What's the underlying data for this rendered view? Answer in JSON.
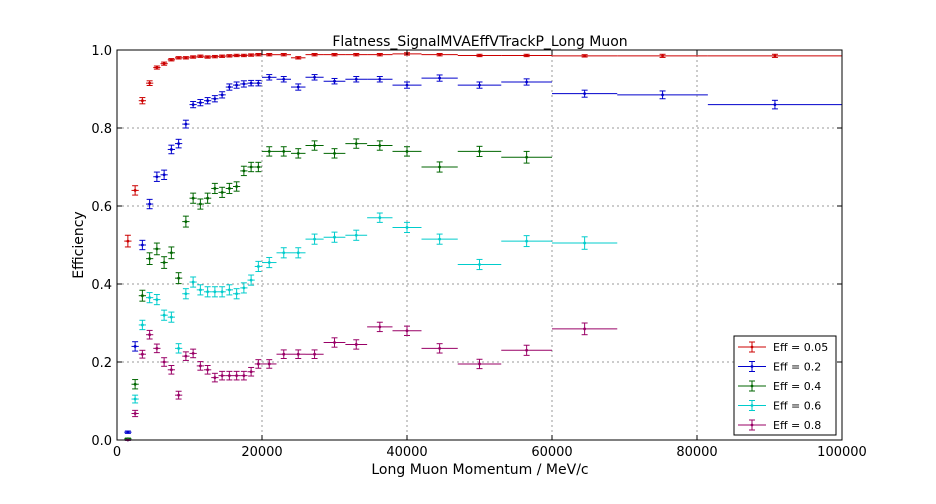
{
  "chart_data": {
    "type": "scatter",
    "title": "Flatness_SignalMVAEffVTrackP_Long Muon",
    "xlabel": "Long Muon Momentum / MeV/c",
    "ylabel": "Efficiency",
    "xlim": [
      0,
      100000
    ],
    "ylim": [
      0,
      1.0
    ],
    "x_ticks": [
      0,
      20000,
      40000,
      60000,
      80000,
      100000
    ],
    "x_tick_labels": [
      "0",
      "20000",
      "40000",
      "60000",
      "80000",
      "100000"
    ],
    "y_ticks": [
      0.0,
      0.2,
      0.4,
      0.6,
      0.8,
      1.0
    ],
    "y_tick_labels": [
      "0.0",
      "0.2",
      "0.4",
      "0.6",
      "0.8",
      "1.0"
    ],
    "grid": true,
    "legend_position": "lower-right",
    "x_bin_edges": [
      1000,
      2000,
      3000,
      4000,
      5000,
      6000,
      7000,
      8000,
      9000,
      10000,
      11000,
      12000,
      13000,
      14000,
      15000,
      16000,
      17000,
      18000,
      19000,
      20000,
      22000,
      24000,
      26000,
      28500,
      31500,
      34500,
      38000,
      42000,
      47000,
      53000,
      60000,
      69000,
      81500,
      100000
    ],
    "series": [
      {
        "name": "Eff = 0.05",
        "color": "#cc0000",
        "y": [
          0.51,
          0.64,
          0.87,
          0.915,
          0.955,
          0.965,
          0.975,
          0.98,
          0.98,
          0.982,
          0.984,
          0.982,
          0.983,
          0.984,
          0.985,
          0.986,
          0.986,
          0.987,
          0.988,
          0.988,
          0.988,
          0.98,
          0.988,
          0.988,
          0.988,
          0.988,
          0.99,
          0.988,
          0.986,
          0.986,
          0.985,
          0.985,
          0.985
        ],
        "err": [
          0.015,
          0.012,
          0.008,
          0.006,
          0.004,
          0.004,
          0.003,
          0.003,
          0.003,
          0.003,
          0.003,
          0.003,
          0.003,
          0.003,
          0.003,
          0.003,
          0.003,
          0.003,
          0.003,
          0.003,
          0.003,
          0.003,
          0.003,
          0.003,
          0.003,
          0.003,
          0.003,
          0.003,
          0.003,
          0.003,
          0.003,
          0.004,
          0.004
        ]
      },
      {
        "name": "Eff = 0.2",
        "color": "#0000cc",
        "y": [
          0.02,
          0.24,
          0.5,
          0.605,
          0.675,
          0.68,
          0.745,
          0.76,
          0.81,
          0.86,
          0.865,
          0.87,
          0.875,
          0.885,
          0.905,
          0.91,
          0.913,
          0.915,
          0.915,
          0.93,
          0.925,
          0.905,
          0.93,
          0.92,
          0.925,
          0.925,
          0.91,
          0.928,
          0.91,
          0.918,
          0.888,
          0.885,
          0.86
        ],
        "err": [
          0.003,
          0.012,
          0.012,
          0.012,
          0.012,
          0.012,
          0.011,
          0.011,
          0.01,
          0.008,
          0.008,
          0.008,
          0.008,
          0.008,
          0.008,
          0.008,
          0.008,
          0.007,
          0.007,
          0.007,
          0.007,
          0.008,
          0.007,
          0.007,
          0.007,
          0.007,
          0.008,
          0.008,
          0.008,
          0.008,
          0.009,
          0.01,
          0.011
        ]
      },
      {
        "name": "Eff = 0.4",
        "color": "#006600",
        "y": [
          0.003,
          0.143,
          0.37,
          0.465,
          0.49,
          0.455,
          0.48,
          0.415,
          0.56,
          0.62,
          0.605,
          0.62,
          0.645,
          0.635,
          0.645,
          0.65,
          0.69,
          0.7,
          0.7,
          0.74,
          0.74,
          0.735,
          0.755,
          0.735,
          0.76,
          0.755,
          0.74,
          0.7,
          0.74,
          0.725
        ],
        "err": [
          0.002,
          0.012,
          0.014,
          0.015,
          0.015,
          0.015,
          0.015,
          0.014,
          0.014,
          0.013,
          0.013,
          0.013,
          0.013,
          0.013,
          0.013,
          0.012,
          0.012,
          0.012,
          0.012,
          0.012,
          0.012,
          0.012,
          0.012,
          0.012,
          0.012,
          0.012,
          0.012,
          0.013,
          0.013,
          0.015
        ]
      },
      {
        "name": "Eff = 0.6",
        "color": "#00cccc",
        "y": [
          0.0,
          0.105,
          0.295,
          0.365,
          0.36,
          0.32,
          0.315,
          0.235,
          0.375,
          0.405,
          0.385,
          0.38,
          0.38,
          0.38,
          0.385,
          0.375,
          0.39,
          0.41,
          0.445,
          0.455,
          0.48,
          0.48,
          0.515,
          0.52,
          0.525,
          0.57,
          0.545,
          0.515,
          0.45,
          0.51,
          0.505
        ],
        "err": [
          0.001,
          0.01,
          0.012,
          0.013,
          0.013,
          0.013,
          0.013,
          0.012,
          0.013,
          0.013,
          0.013,
          0.013,
          0.013,
          0.013,
          0.013,
          0.013,
          0.013,
          0.013,
          0.013,
          0.013,
          0.013,
          0.013,
          0.013,
          0.013,
          0.013,
          0.012,
          0.013,
          0.013,
          0.013,
          0.014,
          0.016
        ]
      },
      {
        "name": "Eff = 0.8",
        "color": "#990066",
        "y": [
          0.0,
          0.068,
          0.22,
          0.27,
          0.235,
          0.2,
          0.18,
          0.115,
          0.215,
          0.222,
          0.19,
          0.18,
          0.16,
          0.165,
          0.165,
          0.165,
          0.165,
          0.175,
          0.195,
          0.195,
          0.22,
          0.22,
          0.22,
          0.25,
          0.245,
          0.29,
          0.28,
          0.235,
          0.195,
          0.23,
          0.285
        ],
        "err": [
          0.001,
          0.008,
          0.01,
          0.011,
          0.011,
          0.011,
          0.011,
          0.01,
          0.011,
          0.011,
          0.011,
          0.011,
          0.011,
          0.011,
          0.011,
          0.011,
          0.011,
          0.011,
          0.011,
          0.011,
          0.011,
          0.011,
          0.011,
          0.012,
          0.012,
          0.012,
          0.012,
          0.012,
          0.012,
          0.013,
          0.015
        ]
      }
    ]
  }
}
